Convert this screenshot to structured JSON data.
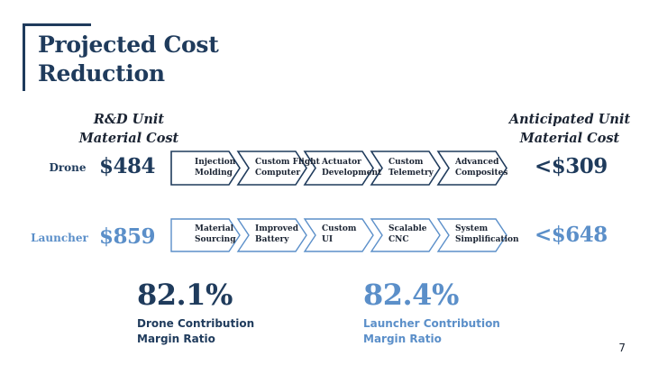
{
  "slide": {
    "title_line1": "Projected Cost",
    "title_line2": "Reduction",
    "left_header_line1": "R&D Unit",
    "left_header_line2": "Material Cost",
    "right_header_line1": "Anticipated Unit",
    "right_header_line2": "Material Cost",
    "page_number": "7"
  },
  "rows": [
    {
      "label": "Drone",
      "start_cost": "$484",
      "end_cost": "<$309",
      "steps": [
        [
          "Injection",
          "Molding"
        ],
        [
          "Custom Flight",
          "Computer"
        ],
        [
          "Actuator",
          "Development"
        ],
        [
          "Custom",
          "Telemetry"
        ],
        [
          "Advanced",
          "Composites"
        ]
      ]
    },
    {
      "label": "Launcher",
      "start_cost": "$859",
      "end_cost": "<$648",
      "steps": [
        [
          "Material",
          "Sourcing"
        ],
        [
          "Improved",
          "Battery"
        ],
        [
          "Custom",
          "UI"
        ],
        [
          "Scalable",
          "CNC"
        ],
        [
          "System",
          "Simplification"
        ]
      ]
    }
  ],
  "ratios": [
    {
      "value": "82.1%",
      "label_line1": "Drone Contribution",
      "label_line2": "Margin Ratio"
    },
    {
      "value": "82.4%",
      "label_line1": "Launcher Contribution",
      "label_line2": "Margin Ratio"
    }
  ],
  "colors": {
    "dark": "#1f3b5c",
    "light": "#5b8fc9",
    "text": "#1b2433"
  }
}
